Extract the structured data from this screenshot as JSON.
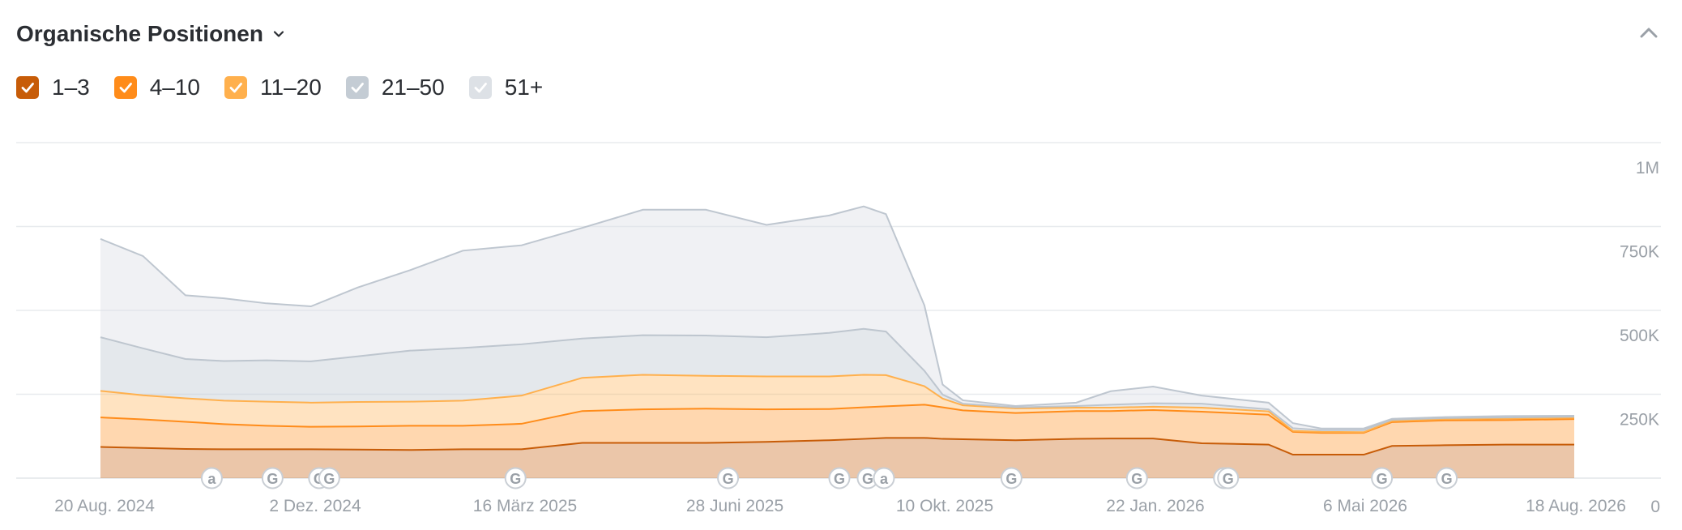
{
  "header": {
    "title": "Organische Positionen"
  },
  "colors": {
    "s1_3": "#c75c08",
    "s4_10": "#ff8c1a",
    "s11_20": "#ffb04d",
    "s21_50": "#c4ccd4",
    "s51": "#dde1e6"
  },
  "legend": [
    {
      "label": "1–3",
      "color": "#c75c08"
    },
    {
      "label": "4–10",
      "color": "#ff8c1a"
    },
    {
      "label": "11–20",
      "color": "#ffb04d"
    },
    {
      "label": "21–50",
      "color": "#c4ccd4"
    },
    {
      "label": "51+",
      "color": "#dde1e6"
    }
  ],
  "chart_data": {
    "type": "area",
    "stacked": true,
    "grid": true,
    "y_axis_position": "right",
    "ylim": [
      0,
      1000000
    ],
    "y_ticks": [
      "0",
      "250K",
      "500K",
      "750K",
      "1M"
    ],
    "x_ticks": [
      "20 Aug. 2024",
      "2 Dez. 2024",
      "16 März 2025",
      "28 Juni 2025",
      "10 Okt. 2025",
      "22 Jan. 2026",
      "6 Mai 2026",
      "18 Aug. 2026"
    ],
    "x": [
      "2024-08-20",
      "2024-09-10",
      "2024-10-01",
      "2024-10-20",
      "2024-11-10",
      "2024-12-02",
      "2024-12-25",
      "2025-01-20",
      "2025-02-15",
      "2025-03-16",
      "2025-04-15",
      "2025-05-15",
      "2025-06-15",
      "2025-07-15",
      "2025-08-15",
      "2025-09-01",
      "2025-09-12",
      "2025-10-01",
      "2025-10-10",
      "2025-10-20",
      "2025-11-15",
      "2025-12-15",
      "2026-01-01",
      "2026-01-22",
      "2026-02-15",
      "2026-03-20",
      "2026-04-01",
      "2026-04-15",
      "2026-05-06",
      "2026-05-20",
      "2026-06-15",
      "2026-07-15",
      "2026-08-18"
    ],
    "series": [
      {
        "name": "1–3",
        "values": [
          93000,
          90000,
          87000,
          86000,
          86000,
          86000,
          85000,
          84000,
          86000,
          86000,
          105000,
          105000,
          105000,
          108000,
          113000,
          117000,
          120000,
          120000,
          117000,
          116000,
          113000,
          117000,
          118000,
          118000,
          104000,
          100000,
          70000,
          70000,
          70000,
          96000,
          98000,
          100000,
          100000
        ]
      },
      {
        "name": "4–10",
        "values": [
          88000,
          85000,
          81000,
          75000,
          70000,
          67000,
          69000,
          72000,
          70000,
          76000,
          95000,
          100000,
          102000,
          97000,
          93000,
          94000,
          94000,
          99000,
          94000,
          86000,
          81000,
          83000,
          82000,
          85000,
          94000,
          89000,
          68000,
          65000,
          65000,
          71000,
          74000,
          73000,
          76000
        ]
      },
      {
        "name": "11–20",
        "values": [
          79000,
          72000,
          70000,
          70000,
          72000,
          72000,
          73000,
          72000,
          75000,
          84000,
          99000,
          103000,
          98000,
          98000,
          97000,
          97000,
          93000,
          55000,
          26000,
          15000,
          14000,
          10000,
          10000,
          10000,
          12000,
          10000,
          3000,
          3000,
          2000,
          3000,
          4000,
          5000,
          4000
        ]
      },
      {
        "name": "21–50",
        "values": [
          160000,
          140000,
          117000,
          118000,
          123000,
          123000,
          136000,
          152000,
          157000,
          153000,
          117000,
          118000,
          120000,
          117000,
          130000,
          137000,
          130000,
          46000,
          12000,
          5000,
          3000,
          5000,
          9000,
          10000,
          12000,
          6000,
          8000,
          5000,
          6000,
          4000,
          3000,
          3000,
          3000
        ]
      },
      {
        "name": "51+",
        "values": [
          293000,
          275000,
          190000,
          187000,
          170000,
          164000,
          205000,
          240000,
          290000,
          295000,
          330000,
          374000,
          375000,
          335000,
          350000,
          365000,
          350000,
          195000,
          30000,
          10000,
          4000,
          10000,
          40000,
          50000,
          24000,
          20000,
          15000,
          5000,
          5000,
          3000,
          3000,
          4000,
          3000
        ]
      }
    ],
    "annotations": [
      {
        "label": "a",
        "date": "2024-10-14"
      },
      {
        "label": "G",
        "date": "2024-11-13"
      },
      {
        "label": "G",
        "date": "2024-12-06"
      },
      {
        "label": "G",
        "date": "2024-12-11"
      },
      {
        "label": "G",
        "date": "2025-03-13"
      },
      {
        "label": "G",
        "date": "2025-06-26"
      },
      {
        "label": "G",
        "date": "2025-08-20"
      },
      {
        "label": "G",
        "date": "2025-09-03"
      },
      {
        "label": "a",
        "date": "2025-09-11"
      },
      {
        "label": "G",
        "date": "2025-11-13"
      },
      {
        "label": "G",
        "date": "2026-01-14"
      },
      {
        "label": "G",
        "date": "2026-02-26"
      },
      {
        "label": "G",
        "date": "2026-02-28"
      },
      {
        "label": "G",
        "date": "2026-05-15"
      },
      {
        "label": "G",
        "date": "2026-06-16"
      }
    ]
  }
}
